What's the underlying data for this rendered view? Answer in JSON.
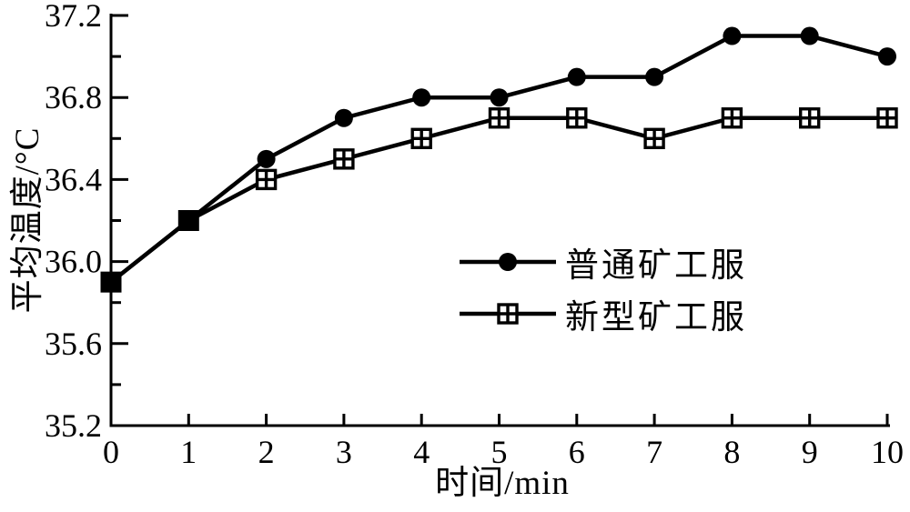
{
  "figure": {
    "background": "#ffffff",
    "ink_color": "#000000"
  },
  "chart_data": {
    "type": "line",
    "title": "",
    "xlabel": "时间/min",
    "ylabel": "平均温度/°C",
    "x": [
      0,
      1,
      2,
      3,
      4,
      5,
      6,
      7,
      8,
      9,
      10
    ],
    "xlim": [
      0,
      10
    ],
    "ylim": [
      35.2,
      37.2
    ],
    "xticks": [
      0,
      1,
      2,
      3,
      4,
      5,
      6,
      7,
      8,
      9,
      10
    ],
    "yticks": [
      35.2,
      35.6,
      36.0,
      36.4,
      36.8,
      37.2
    ],
    "y_minor_ticks": [
      35.4,
      35.8,
      36.2,
      36.6,
      37.0
    ],
    "grid": false,
    "legend_position": "center-right",
    "series": [
      {
        "name": "普通矿工服",
        "marker": "filled-circle",
        "color": "#000000",
        "values": [
          35.9,
          36.2,
          36.5,
          36.7,
          36.8,
          36.8,
          36.9,
          36.9,
          37.1,
          37.1,
          37.0
        ]
      },
      {
        "name": "新型矿工服",
        "marker": "square-cross",
        "color": "#000000",
        "values": [
          35.9,
          36.2,
          36.4,
          36.5,
          36.6,
          36.7,
          36.7,
          36.6,
          36.7,
          36.7,
          36.7
        ]
      }
    ],
    "overlap_marker": "filled-square"
  }
}
